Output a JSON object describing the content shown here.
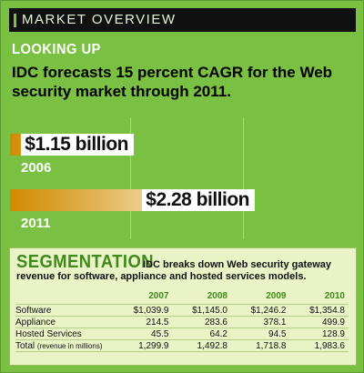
{
  "header": {
    "title": "MARKET OVERVIEW"
  },
  "kicker": "LOOKING UP",
  "headline": "IDC forecasts 15 percent CAGR for the Web security market through 2011.",
  "chart_data": {
    "type": "bar",
    "orientation": "horizontal",
    "categories": [
      "2006",
      "2011"
    ],
    "values": [
      1.15,
      2.28
    ],
    "value_labels": [
      "$1.15 billion",
      "$2.28 billion"
    ],
    "unit": "billion USD",
    "grid": true
  },
  "segmentation": {
    "title": "SEGMENTATION",
    "description": "IDC breaks down Web security gateway revenue for software, appliance and hosted services models.",
    "columns": [
      "2007",
      "2008",
      "2009",
      "2010"
    ],
    "rows": [
      {
        "label": "Software",
        "values": [
          "$1,039.9",
          "$1,145.0",
          "$1,246.2",
          "$1,354.8"
        ]
      },
      {
        "label": "Appliance",
        "values": [
          "214.5",
          "283.6",
          "378.1",
          "499.9"
        ]
      },
      {
        "label": "Hosted Services",
        "values": [
          "45.5",
          "64.2",
          "94.5",
          "128.9"
        ]
      }
    ],
    "total": {
      "label": "Total",
      "note": "(revenue in millions)",
      "values": [
        "1,299.9",
        "1,492.8",
        "1,718.8",
        "1,983.6"
      ]
    }
  },
  "colors": {
    "background": "#7ac143",
    "header_bar": "#111111",
    "bar_start": "#d08a00",
    "bar_end": "#fffdf6",
    "panel": "#eaf3c6",
    "accent_text": "#3f8a1b"
  }
}
